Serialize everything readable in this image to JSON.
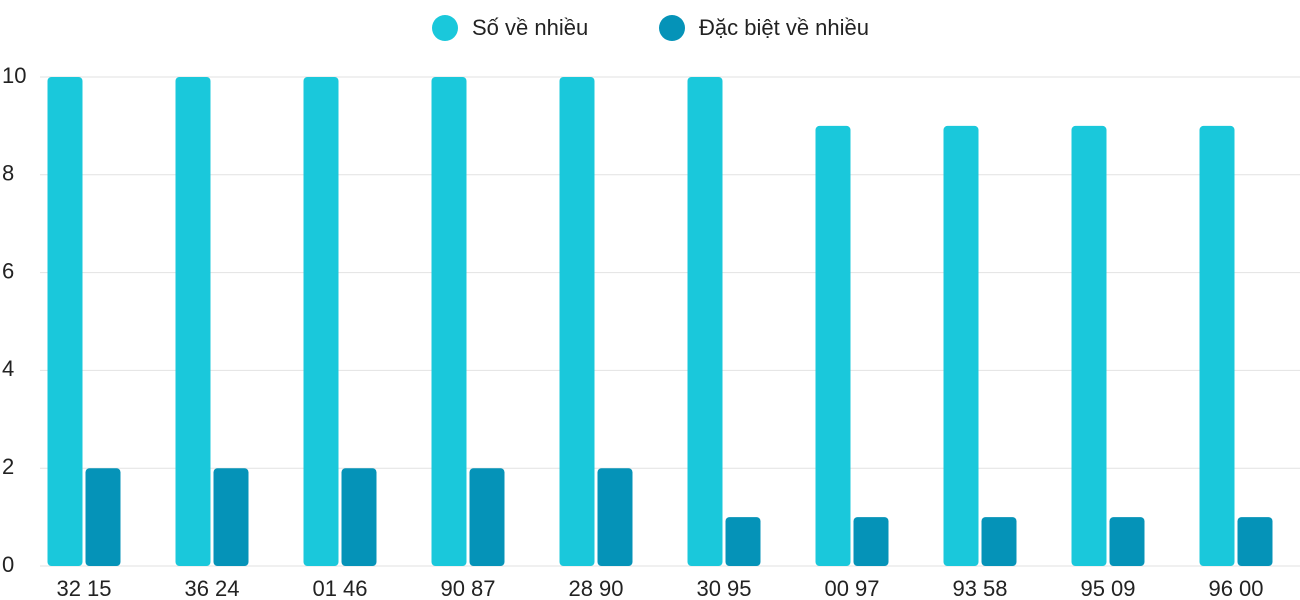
{
  "chart_data": {
    "type": "bar",
    "categories": [
      "32 15",
      "36 24",
      "01 46",
      "90 87",
      "28 90",
      "30 95",
      "00 97",
      "93 58",
      "95 09",
      "96 00"
    ],
    "series": [
      {
        "name": "Số về nhiều",
        "color": "#1ac8db",
        "values": [
          10,
          10,
          10,
          10,
          10,
          10,
          9,
          9,
          9,
          9
        ]
      },
      {
        "name": "Đặc biệt về nhiều",
        "color": "#0593b8",
        "values": [
          2,
          2,
          2,
          2,
          2,
          1,
          1,
          1,
          1,
          1
        ]
      }
    ],
    "ylim": [
      0,
      10
    ],
    "yticks": [
      0,
      2,
      4,
      6,
      8,
      10
    ],
    "grid": true,
    "legend": "top"
  }
}
